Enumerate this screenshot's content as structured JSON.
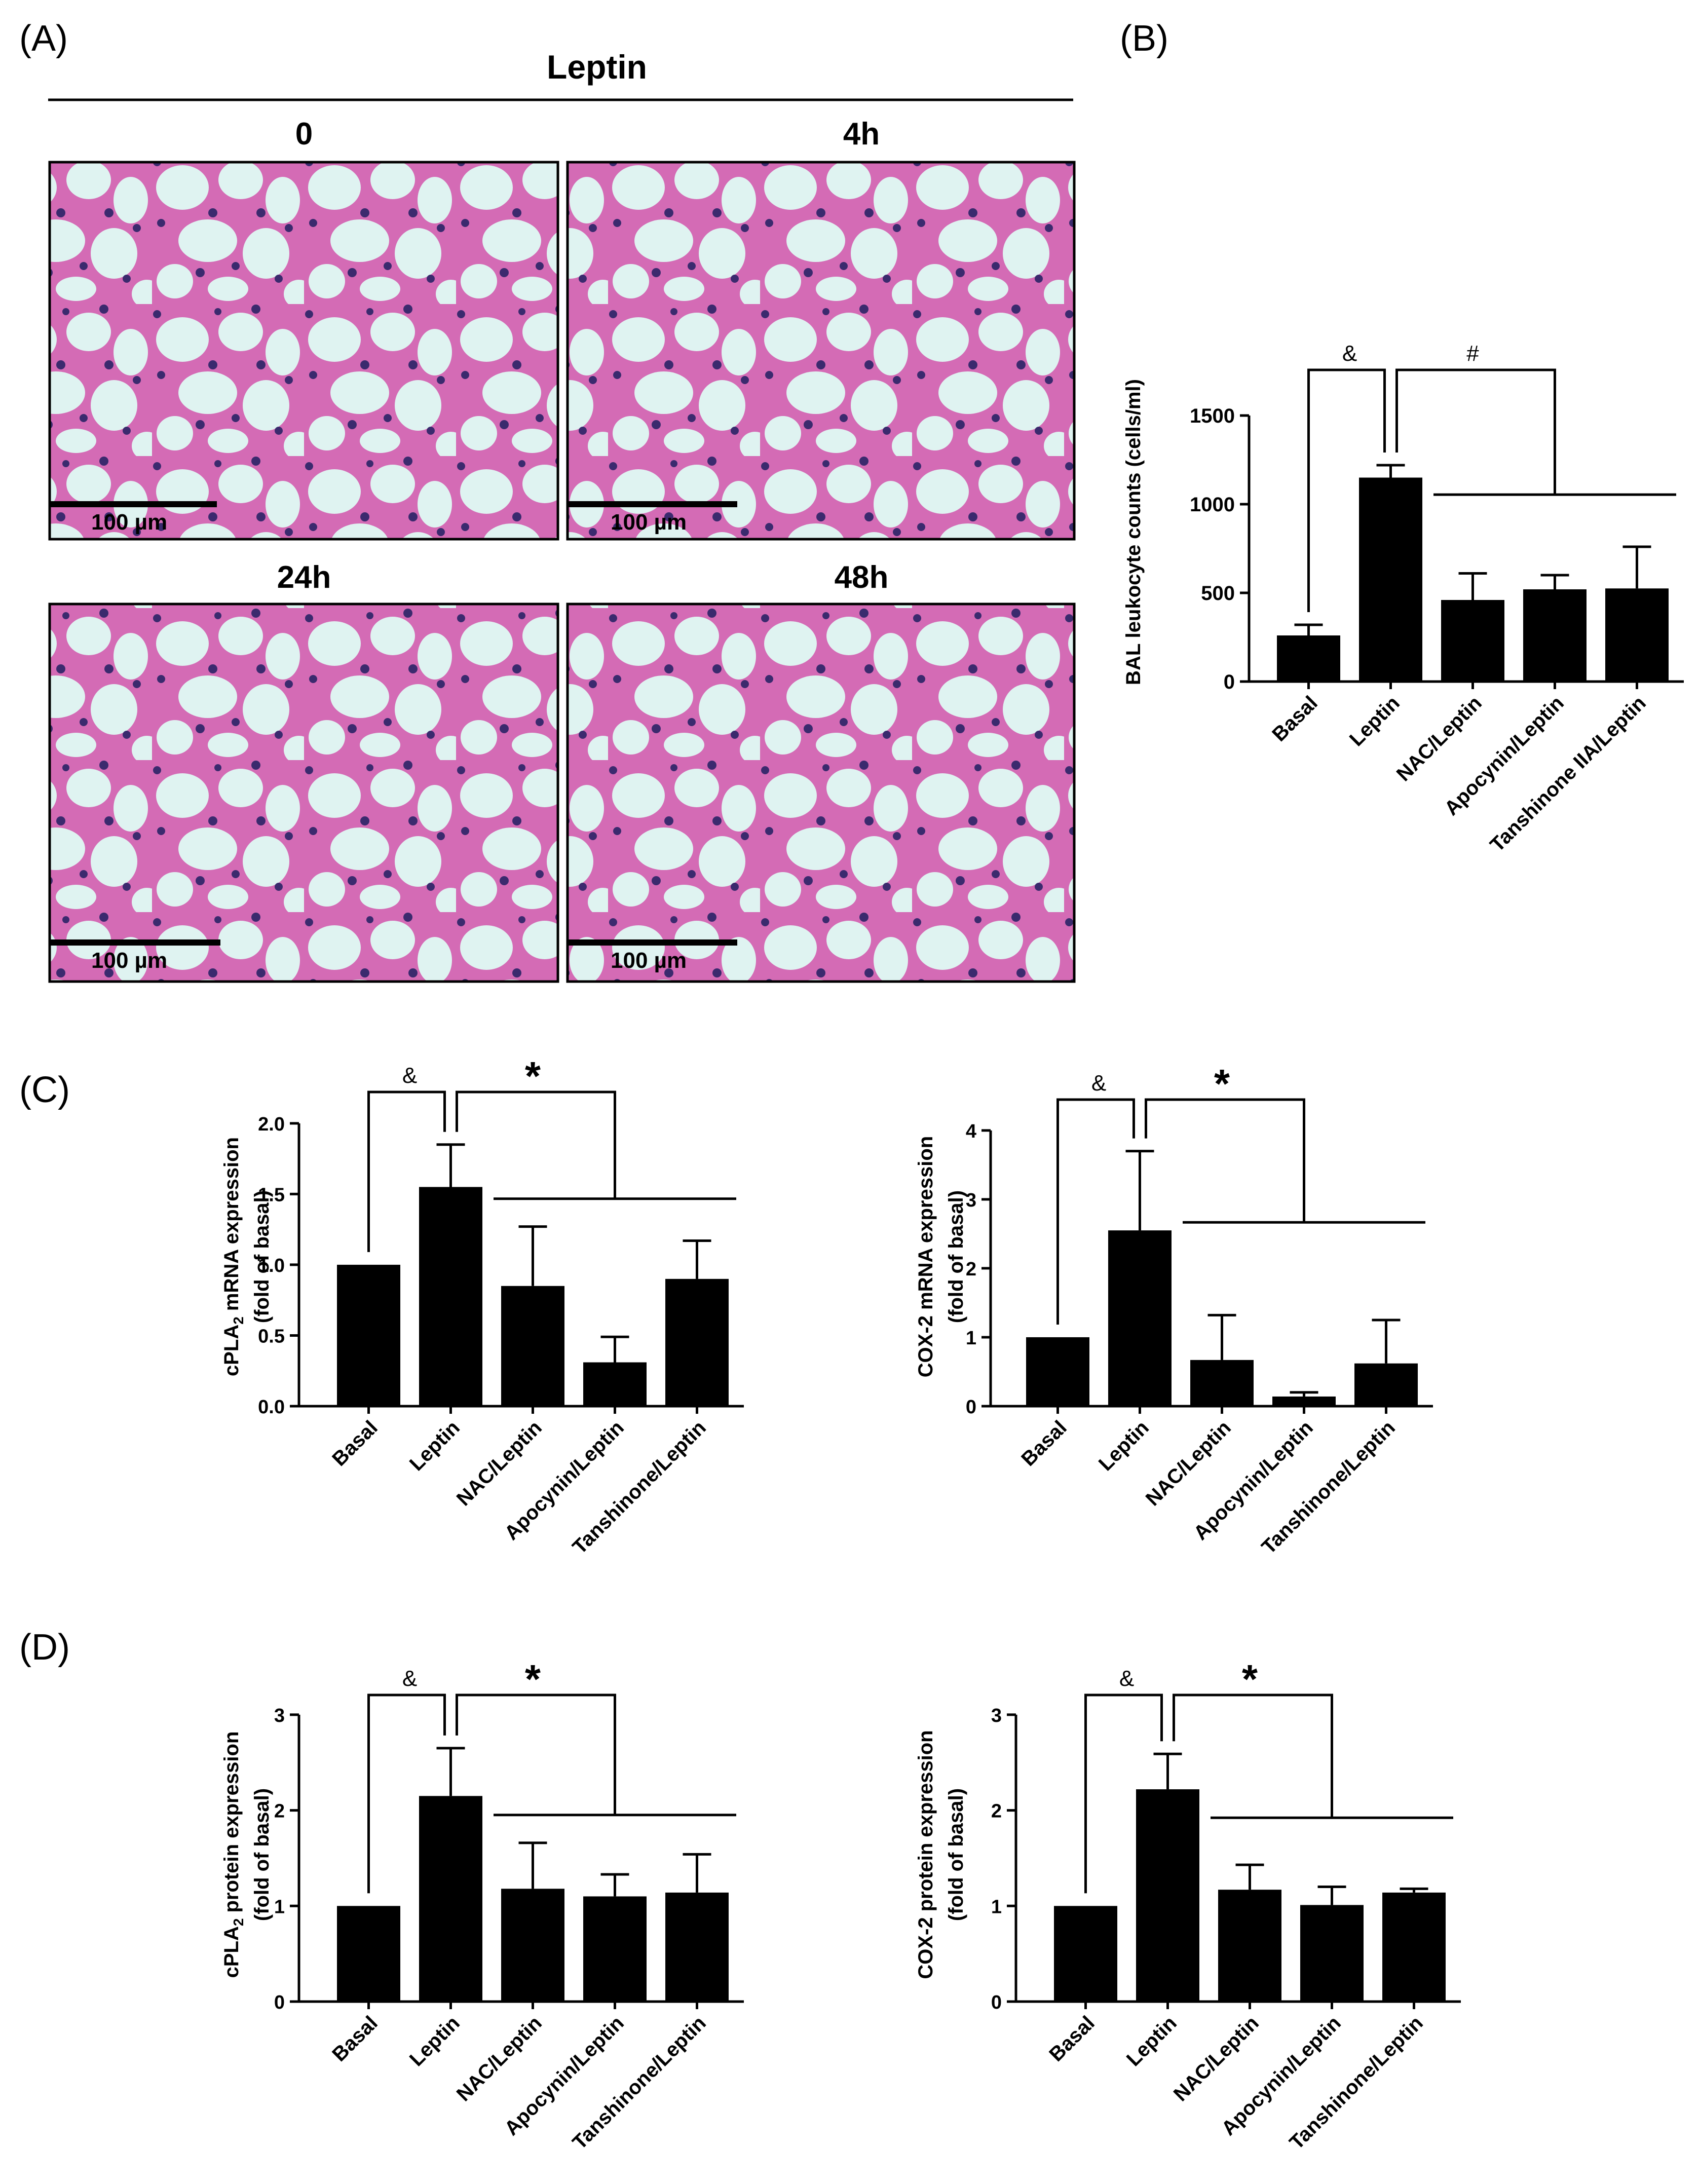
{
  "panel_labels": {
    "a": "(A)",
    "b": "(B)",
    "c": "(C)",
    "d": "(D)"
  },
  "histology": {
    "header": "Leptin",
    "timepoints": [
      "0",
      "4h",
      "24h",
      "48h"
    ],
    "scale_bar": "100 µm",
    "colors": {
      "background": "#dff3f1",
      "tissue": "#d46bb5",
      "nuclei": "#3b2a6e"
    }
  },
  "chart_data": [
    {
      "id": "bal",
      "type": "bar",
      "ylabel": "BAL leukocyte counts (cells/ml)",
      "categories": [
        "Basal",
        "Leptin",
        "NAC/Leptin",
        "Apocynin/Leptin",
        "Tanshinone IIA/Leptin"
      ],
      "values": [
        260,
        1150,
        460,
        520,
        525
      ],
      "errors": [
        60,
        70,
        150,
        80,
        235
      ],
      "ylim": [
        0,
        1700
      ],
      "yticks": [
        0,
        500,
        1000,
        1500
      ],
      "tick_labels": [
        "0",
        "500",
        "1000",
        "1500"
      ],
      "marks": {
        "left": "&",
        "right": "#"
      },
      "bold_ticks": false
    },
    {
      "id": "c_cpla2",
      "type": "bar",
      "ylabel_main": "cPLA",
      "ylabel_sub": "2",
      "ylabel_rest": " mRNA expression",
      "ylabel2": "(fold of basal)",
      "categories": [
        "Basal",
        "Leptin",
        "NAC/Leptin",
        "Apocynin/Leptin",
        "Tanshinone/Leptin"
      ],
      "values": [
        1.0,
        1.55,
        0.85,
        0.31,
        0.9
      ],
      "errors": [
        0,
        0.3,
        0.42,
        0.18,
        0.27
      ],
      "ylim": [
        0,
        2.15
      ],
      "yticks": [
        0,
        0.5,
        1.0,
        1.5,
        2.0
      ],
      "tick_labels": [
        "0.0",
        "0.5",
        "1.0",
        "1.5",
        "2.0"
      ],
      "marks": {
        "left": "&",
        "right": "*"
      },
      "bold_ticks": true
    },
    {
      "id": "c_cox2",
      "type": "bar",
      "ylabel_main": "COX-2 mRNA expression",
      "ylabel2": "(fold of basal)",
      "categories": [
        "Basal",
        "Leptin",
        "NAC/Leptin",
        "Apocynin/Leptin",
        "Tanshinone/Leptin"
      ],
      "values": [
        1.0,
        2.55,
        0.67,
        0.14,
        0.62
      ],
      "errors": [
        0,
        1.15,
        0.65,
        0.06,
        0.63
      ],
      "ylim": [
        0,
        4.3
      ],
      "yticks": [
        0,
        1,
        2,
        3,
        4
      ],
      "tick_labels": [
        "0",
        "1",
        "2",
        "3",
        "4"
      ],
      "marks": {
        "left": "&",
        "right": "*"
      },
      "bold_ticks": true
    },
    {
      "id": "d_cpla2",
      "type": "bar",
      "ylabel_main": "cPLA",
      "ylabel_sub": "2",
      "ylabel_rest": " protein expression",
      "ylabel2": "(fold of basal)",
      "categories": [
        "Basal",
        "Leptin",
        "NAC/Leptin",
        "Apocynin/Leptin",
        "Tanshinone/Leptin"
      ],
      "values": [
        1.0,
        2.15,
        1.18,
        1.1,
        1.14
      ],
      "errors": [
        0,
        0.5,
        0.48,
        0.23,
        0.4
      ],
      "ylim": [
        0,
        3.1
      ],
      "yticks": [
        0,
        1,
        2,
        3
      ],
      "tick_labels": [
        "0",
        "1",
        "2",
        "3"
      ],
      "marks": {
        "left": "&",
        "right": "*"
      },
      "bold_ticks": true
    },
    {
      "id": "d_cox2",
      "type": "bar",
      "ylabel_main": "COX-2 protein expression",
      "ylabel2": "(fold of basal)",
      "categories": [
        "Basal",
        "Leptin",
        "NAC/Leptin",
        "Apocynin/Leptin",
        "Tanshinone/Leptin"
      ],
      "values": [
        1.0,
        2.22,
        1.17,
        1.01,
        1.14
      ],
      "errors": [
        0,
        0.37,
        0.26,
        0.19,
        0.04
      ],
      "ylim": [
        0,
        3.1
      ],
      "yticks": [
        0,
        1,
        2,
        3
      ],
      "tick_labels": [
        "0",
        "1",
        "2",
        "3"
      ],
      "marks": {
        "left": "&",
        "right": "*"
      },
      "bold_ticks": true
    }
  ]
}
